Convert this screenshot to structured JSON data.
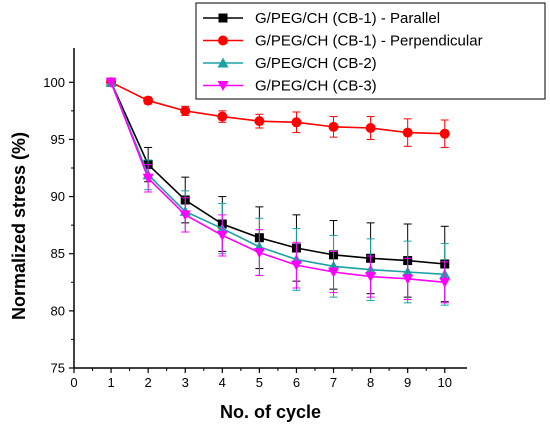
{
  "chart_data": {
    "type": "line",
    "xlabel": "No. of cycle",
    "ylabel": "Normalized stress (%)",
    "xlim": [
      0,
      10.6
    ],
    "ylim": [
      75,
      103
    ],
    "xticks": [
      0,
      1,
      2,
      3,
      4,
      5,
      6,
      7,
      8,
      9,
      10
    ],
    "yticks": [
      75,
      80,
      85,
      90,
      95,
      100
    ],
    "legend_position": "top-right",
    "x": [
      1,
      2,
      3,
      4,
      5,
      6,
      7,
      8,
      9,
      10
    ],
    "series": [
      {
        "name": "G/PEG/CH (CB-1) - Parallel",
        "color": "#000000",
        "marker": "square",
        "values": [
          100,
          92.8,
          89.7,
          87.6,
          86.4,
          85.5,
          84.9,
          84.6,
          84.4,
          84.1
        ],
        "errors": [
          0,
          1.5,
          2.0,
          2.4,
          2.7,
          2.9,
          3.0,
          3.1,
          3.2,
          3.3
        ]
      },
      {
        "name": "G/PEG/CH (CB-1) - Perpendicular",
        "color": "#ff0000",
        "marker": "circle",
        "values": [
          100,
          98.4,
          97.5,
          97.0,
          96.6,
          96.5,
          96.1,
          96.0,
          95.6,
          95.5
        ],
        "errors": [
          0,
          0.3,
          0.4,
          0.5,
          0.6,
          0.9,
          0.9,
          1.0,
          1.2,
          1.2
        ]
      },
      {
        "name": "G/PEG/CH (CB-2)",
        "color": "#1aa3a3",
        "marker": "triangle-up",
        "values": [
          100,
          91.9,
          88.7,
          87.2,
          85.6,
          84.5,
          83.9,
          83.6,
          83.4,
          83.2
        ],
        "errors": [
          0,
          1.3,
          1.8,
          2.2,
          2.5,
          2.7,
          2.7,
          2.7,
          2.7,
          2.7
        ]
      },
      {
        "name": "G/PEG/CH (CB-3)",
        "color": "#ff00ff",
        "marker": "triangle-down",
        "values": [
          100,
          91.6,
          88.4,
          86.6,
          85.1,
          84.0,
          83.4,
          83.0,
          82.8,
          82.5
        ],
        "errors": [
          0,
          1.2,
          1.5,
          1.8,
          2.0,
          2.0,
          1.8,
          1.8,
          1.8,
          1.8
        ]
      }
    ]
  }
}
